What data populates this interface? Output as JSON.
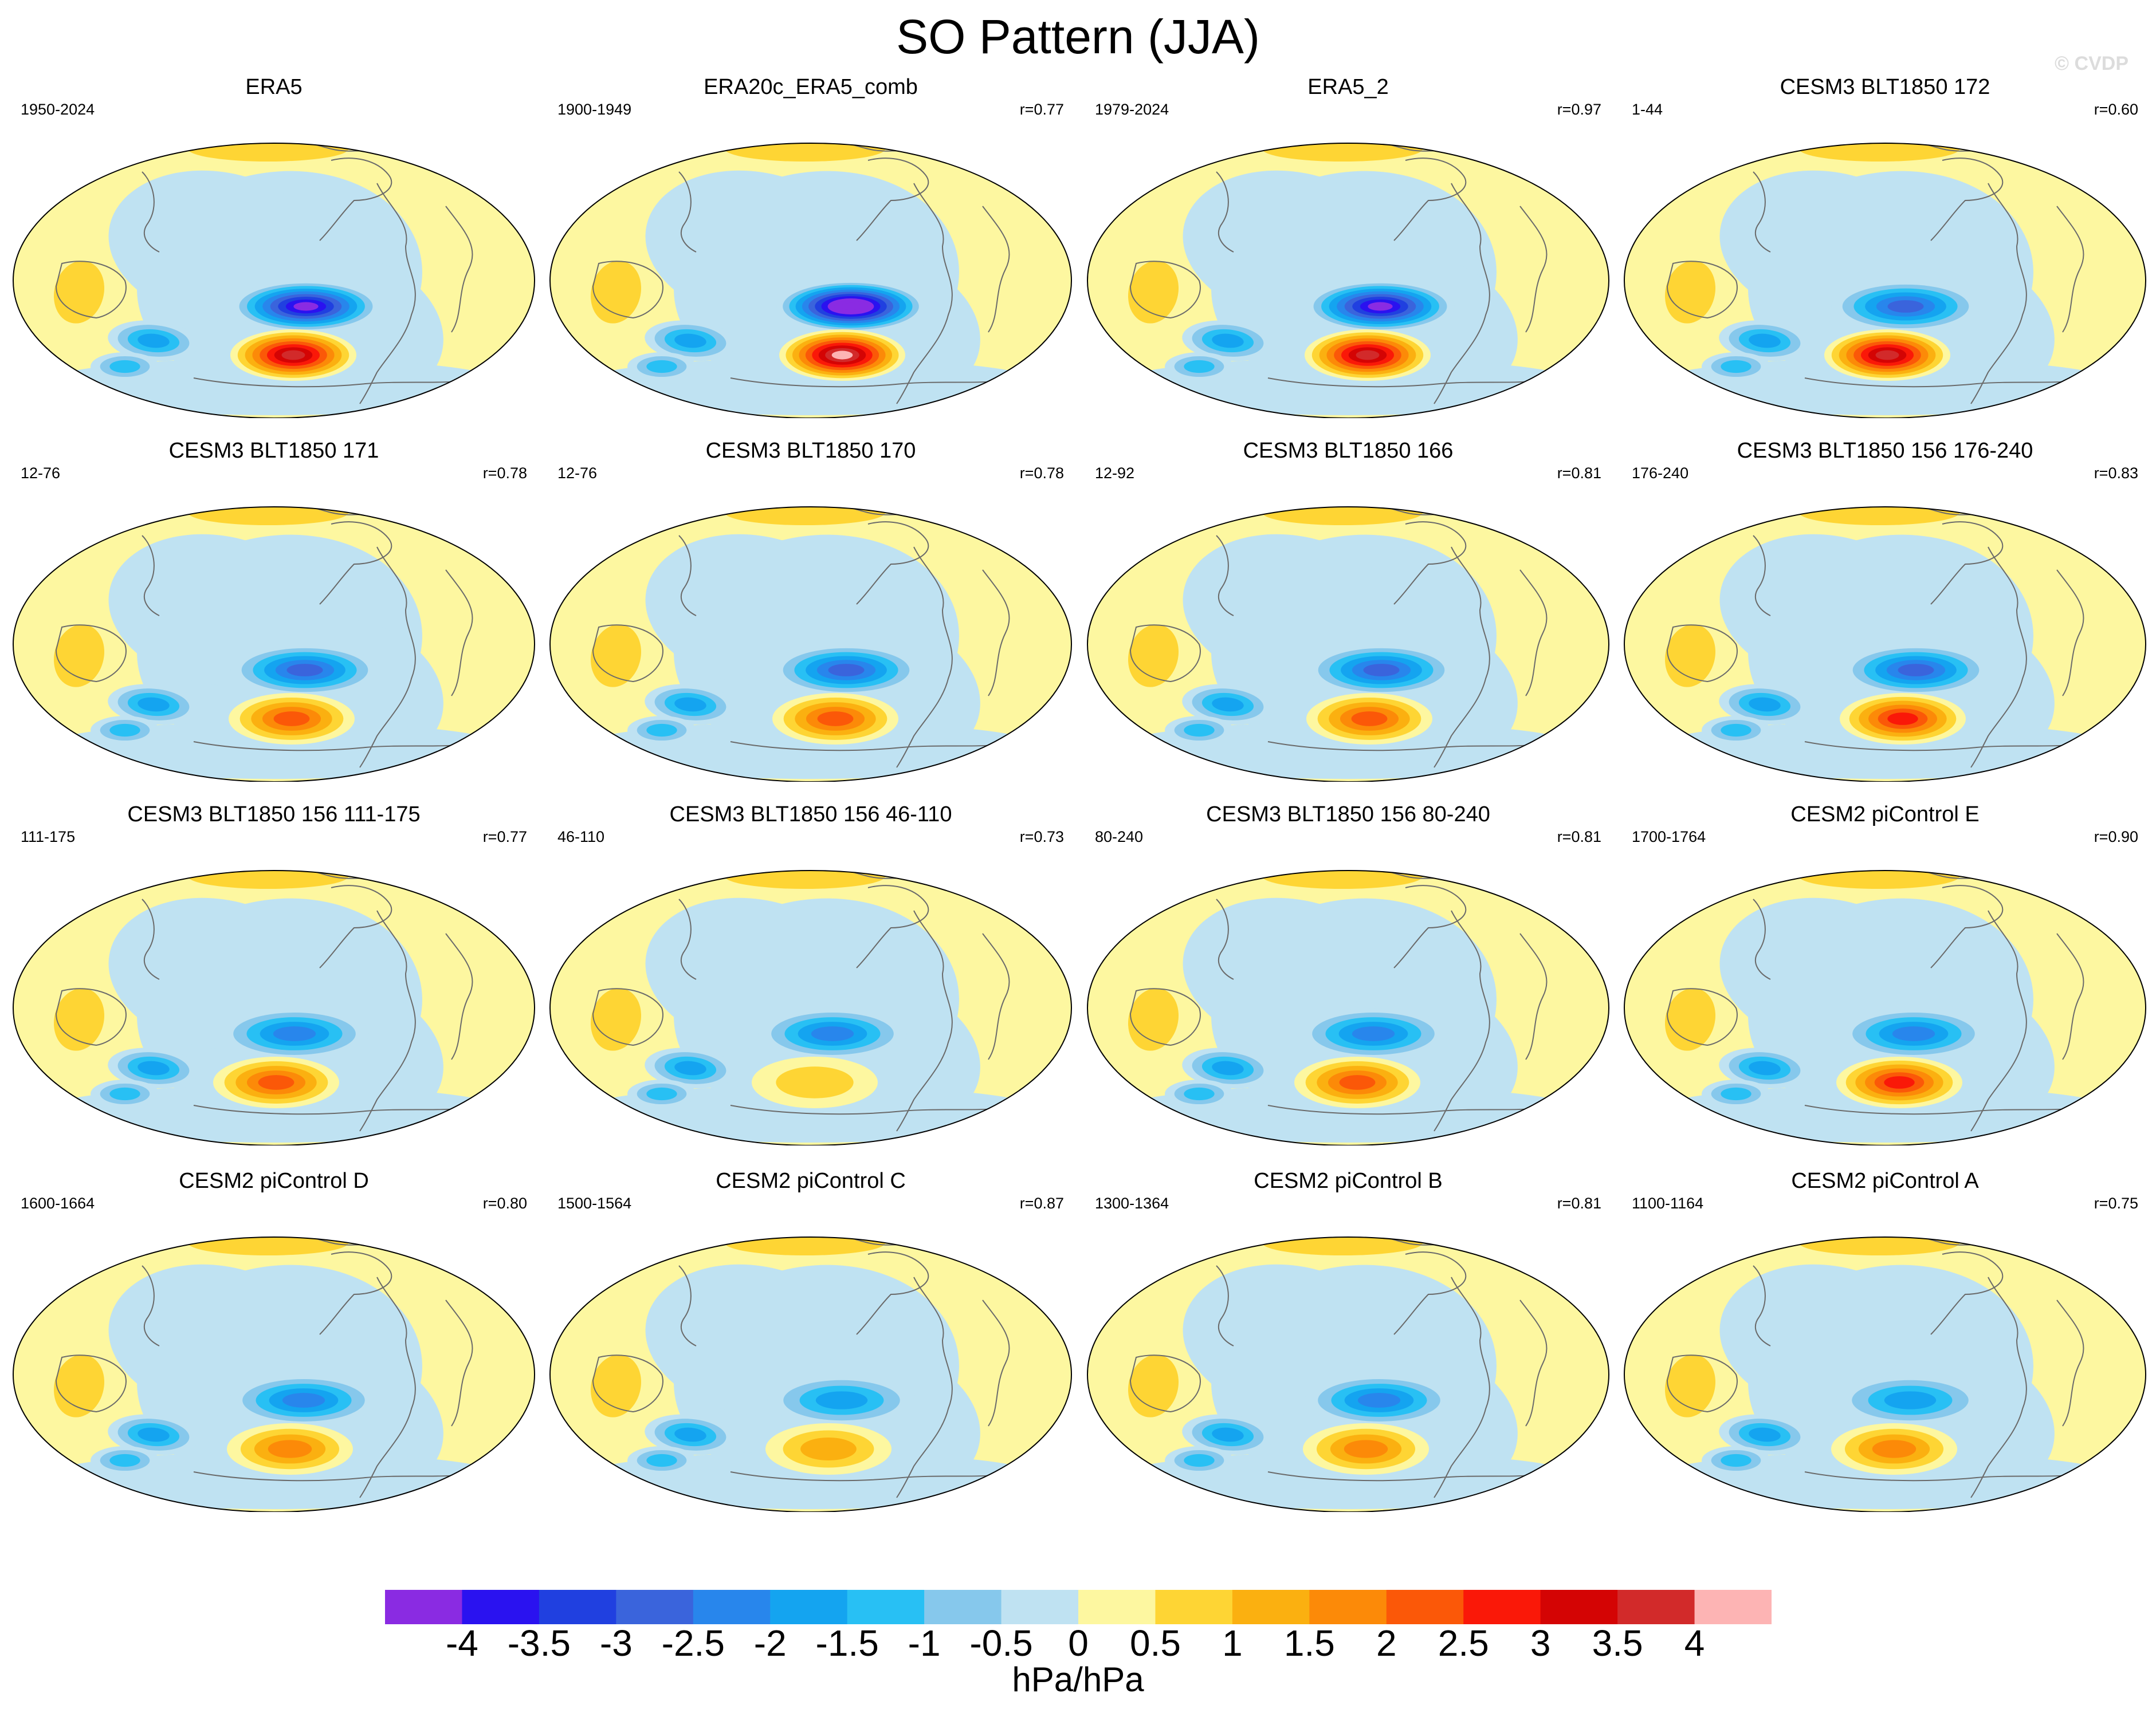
{
  "title": "SO Pattern (JJA)",
  "watermark": "© CVDP",
  "colorbar": {
    "units": "hPa/hPa",
    "labels": [
      "-4",
      "-3.5",
      "-3",
      "-2.5",
      "-2",
      "-1.5",
      "-1",
      "-0.5",
      "0",
      "0.5",
      "1",
      "1.5",
      "2",
      "2.5",
      "3",
      "3.5",
      "4"
    ],
    "colors": [
      "#8a2be2",
      "#2a12f0",
      "#2040e0",
      "#3a64dc",
      "#2886ec",
      "#14a4f0",
      "#28c0f4",
      "#86c8ec",
      "#bfe2f2",
      "#fdf7a0",
      "#fed534",
      "#fbb010",
      "#fc8a08",
      "#fb5808",
      "#fa1808",
      "#d40404",
      "#d22a2a",
      "#fdb4b4"
    ]
  },
  "panels": [
    {
      "title": "ERA5",
      "years": "1950-2024",
      "corr": "",
      "pos": [
        40,
        -4.5,
        4.0,
        0.7
      ]
    },
    {
      "title": "ERA20c_ERA5_comb",
      "years": "1900-1949",
      "corr": "r=0.77",
      "pos": [
        75,
        -5.8,
        4.8,
        0.5
      ]
    },
    {
      "title": "ERA5_2",
      "years": "1979-2024",
      "corr": "r=0.97",
      "pos": [
        40,
        -4.6,
        4.4,
        0.8
      ]
    },
    {
      "title": "CESM3 BLT1850 172",
      "years": "1-44",
      "corr": "r=0.60",
      "pos": [
        -10,
        -3.4,
        4.3,
        0.9
      ]
    },
    {
      "title": "CESM3 BLT1850 171",
      "years": "12-76",
      "corr": "r=0.78",
      "pos": [
        35,
        -3.4,
        2.6,
        0.6
      ]
    },
    {
      "title": "CESM3 BLT1850 170",
      "years": "12-76",
      "corr": "r=0.78",
      "pos": [
        55,
        -3.2,
        2.5,
        0.6
      ]
    },
    {
      "title": "CESM3 BLT1850 166",
      "years": "12-92",
      "corr": "r=0.81",
      "pos": [
        45,
        -3.0,
        2.8,
        0.9
      ]
    },
    {
      "title": "CESM3 BLT1850 156 176-240",
      "years": "176-240",
      "corr": "r=0.83",
      "pos": [
        35,
        -3.0,
        3.0,
        0.7
      ]
    },
    {
      "title": "CESM3 BLT1850 156 111-175",
      "years": "111-175",
      "corr": "r=0.77",
      "pos": [
        -10,
        -2.6,
        2.8,
        0.6
      ]
    },
    {
      "title": "CESM3 BLT1850 156 46-110",
      "years": "46-110",
      "corr": "r=0.73",
      "pos": [
        -5,
        -2.8,
        1.3,
        0.6
      ]
    },
    {
      "title": "CESM3 BLT1850 156 80-240",
      "years": "80-240",
      "corr": "r=0.81",
      "pos": [
        10,
        -2.7,
        2.5,
        0.6
      ]
    },
    {
      "title": "CESM2 piControl E",
      "years": "1700-1764",
      "corr": "r=0.90",
      "pos": [
        25,
        -2.6,
        3.1,
        0.6
      ]
    },
    {
      "title": "CESM2 piControl D",
      "years": "1600-1664",
      "corr": "r=0.80",
      "pos": [
        30,
        -2.8,
        2.2,
        0.6
      ]
    },
    {
      "title": "CESM2 piControl C",
      "years": "1500-1564",
      "corr": "r=0.87",
      "pos": [
        35,
        -2.3,
        1.9,
        0.6
      ]
    },
    {
      "title": "CESM2 piControl B",
      "years": "1300-1364",
      "corr": "r=0.81",
      "pos": [
        35,
        -2.8,
        2.4,
        0.9
      ]
    },
    {
      "title": "CESM2 piControl A",
      "years": "1100-1164",
      "corr": "r=0.75",
      "pos": [
        10,
        -2.4,
        2.4,
        0.6
      ]
    }
  ]
}
